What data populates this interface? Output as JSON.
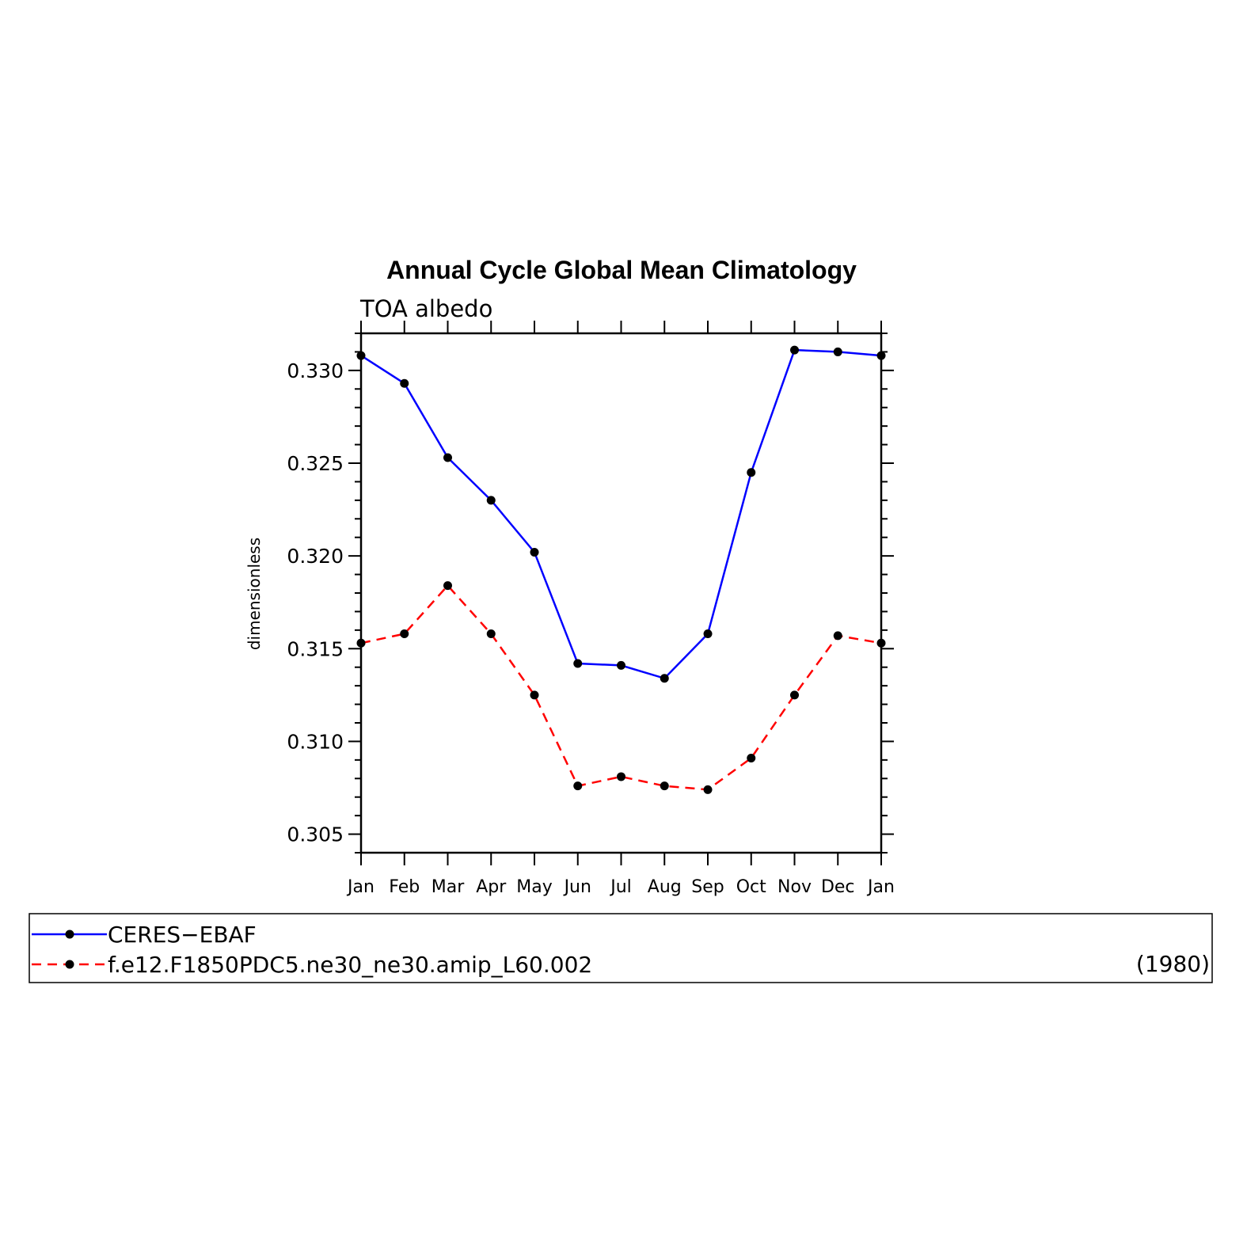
{
  "chart_data": {
    "type": "line",
    "title": "Annual Cycle Global Mean Climatology",
    "subtitle": "TOA albedo",
    "ylabel": "dimensionless",
    "xlabel": "",
    "categories": [
      "Jan",
      "Feb",
      "Mar",
      "Apr",
      "May",
      "Jun",
      "Jul",
      "Aug",
      "Sep",
      "Oct",
      "Nov",
      "Dec",
      "Jan"
    ],
    "ylim": [
      0.304,
      0.332
    ],
    "yticks": [
      "0.305",
      "0.310",
      "0.315",
      "0.320",
      "0.325",
      "0.330"
    ],
    "ytick_values": [
      0.305,
      0.31,
      0.315,
      0.32,
      0.325,
      0.33
    ],
    "grid": false,
    "legend": "bottom-box",
    "series": [
      {
        "name": "CERES−EBAF",
        "color": "#0000ff",
        "dash": "solid",
        "values": [
          0.3308,
          0.3293,
          0.3253,
          0.323,
          0.3202,
          0.3142,
          0.3141,
          0.3134,
          0.3158,
          0.3245,
          0.3311,
          0.331,
          0.3308
        ]
      },
      {
        "name": "f.e12.F1850PDC5.ne30_ne30.amip_L60.002",
        "color": "#ff0000",
        "dash": "dashed",
        "values": [
          0.3153,
          0.3158,
          0.3184,
          0.3158,
          0.3125,
          0.3076,
          0.3081,
          0.3076,
          0.3074,
          0.3091,
          0.3125,
          0.3157,
          0.3153
        ]
      }
    ],
    "legend_note": "(1980)"
  }
}
